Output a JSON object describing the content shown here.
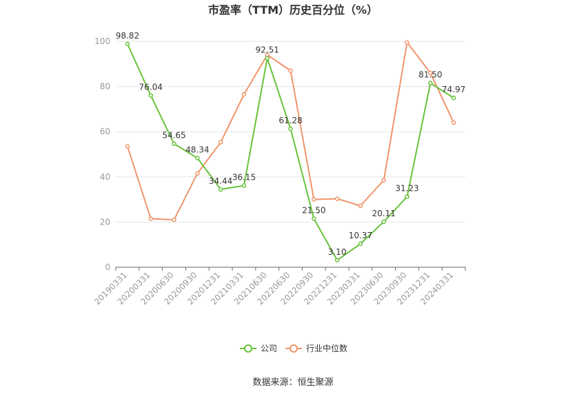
{
  "chart_data": {
    "type": "line",
    "title": "市盈率（TTM）历史百分位（%）",
    "categories": [
      "20190331",
      "20200331",
      "20200630",
      "20200930",
      "20201231",
      "20210331",
      "20210630",
      "20220630",
      "20220930",
      "20221231",
      "20230331",
      "20230630",
      "20230930",
      "20231231",
      "20240331"
    ],
    "ylim": [
      0,
      100
    ],
    "yticks": [
      0,
      20,
      40,
      60,
      80,
      100
    ],
    "grid": true,
    "legend_position": "bottom",
    "series": [
      {
        "name": "公司",
        "color": "#67c23a",
        "values": [
          98.82,
          76.04,
          54.65,
          48.34,
          34.44,
          36.15,
          92.51,
          61.28,
          21.5,
          3.1,
          10.37,
          20.11,
          31.23,
          81.5,
          74.97
        ],
        "labels": [
          "98.82",
          "76.04",
          "54.65",
          "48.34",
          "34.44",
          "36.15",
          "92.51",
          "61.28",
          "21.50",
          "3.10",
          "10.37",
          "20.11",
          "31.23",
          "81.50",
          "74.97"
        ]
      },
      {
        "name": "行业中位数",
        "color": "#f0956a",
        "values": [
          53.5,
          21.5,
          21.0,
          41.5,
          55.3,
          76.5,
          94.0,
          87.0,
          30.0,
          30.3,
          27.2,
          38.5,
          99.5,
          86.0,
          64.0
        ]
      }
    ]
  },
  "source_text": "数据来源：恒生聚源"
}
